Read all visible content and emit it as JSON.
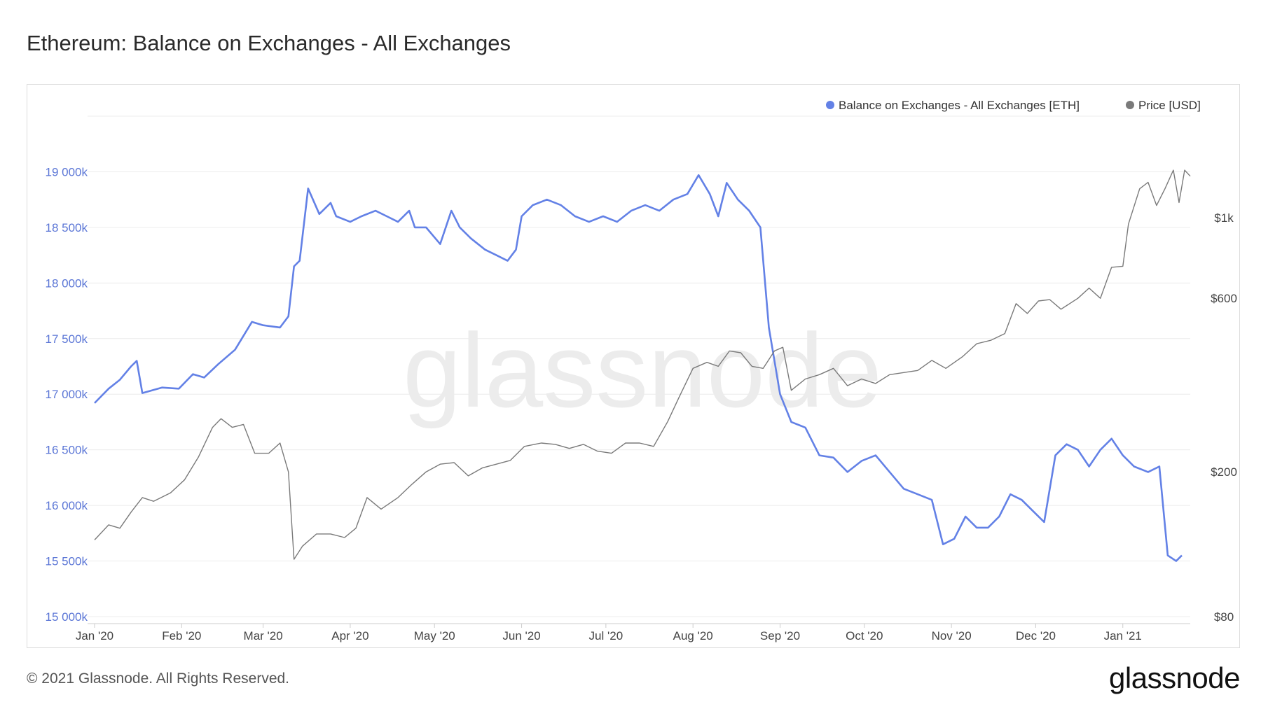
{
  "header": {
    "title": "Ethereum: Balance on Exchanges - All Exchanges"
  },
  "footer": {
    "copyright": "© 2021 Glassnode. All Rights Reserved.",
    "brand": "glassnode"
  },
  "watermark": "glassnode",
  "colors": {
    "balance": "#6381e6",
    "price": "#7a7a7a",
    "grid": "#ececec"
  },
  "chart_data": {
    "type": "line",
    "title": "Ethereum: Balance on Exchanges - All Exchanges",
    "x_tick_labels": [
      "Jan '20",
      "Feb '20",
      "Mar '20",
      "Apr '20",
      "May '20",
      "Jun '20",
      "Jul '20",
      "Aug '20",
      "Sep '20",
      "Oct '20",
      "Nov '20",
      "Dec '20",
      "Jan '21"
    ],
    "x_range": [
      "2020-01-01",
      "2021-01-25"
    ],
    "y_left": {
      "ticks": [
        15000,
        15500,
        16000,
        16500,
        17000,
        17500,
        18000,
        18500,
        19000
      ],
      "tick_labels": [
        "15 000k",
        "15 500k",
        "16 000k",
        "16 500k",
        "17 000k",
        "17 500k",
        "18 000k",
        "18 500k",
        "19 000k"
      ],
      "range": [
        15000,
        19500
      ],
      "unit": "k ETH"
    },
    "y_right": {
      "scale": "log",
      "ticks": [
        80,
        200,
        600,
        1000
      ],
      "tick_labels": [
        "$80",
        "$200",
        "$600",
        "$1k"
      ],
      "range": [
        80,
        1900
      ]
    },
    "grid": true,
    "legend_position": "top-right",
    "series": [
      {
        "name": "Balance on Exchanges - All Exchanges [ETH]",
        "axis": "left",
        "color": "#6381e6",
        "points": [
          [
            "2020-01-01",
            16920
          ],
          [
            "2020-01-06",
            17050
          ],
          [
            "2020-01-10",
            17130
          ],
          [
            "2020-01-14",
            17250
          ],
          [
            "2020-01-16",
            17300
          ],
          [
            "2020-01-18",
            17010
          ],
          [
            "2020-01-25",
            17060
          ],
          [
            "2020-01-31",
            17050
          ],
          [
            "2020-02-05",
            17180
          ],
          [
            "2020-02-09",
            17150
          ],
          [
            "2020-02-14",
            17270
          ],
          [
            "2020-02-20",
            17400
          ],
          [
            "2020-02-26",
            17650
          ],
          [
            "2020-03-01",
            17620
          ],
          [
            "2020-03-07",
            17600
          ],
          [
            "2020-03-10",
            17700
          ],
          [
            "2020-03-12",
            18150
          ],
          [
            "2020-03-14",
            18200
          ],
          [
            "2020-03-17",
            18850
          ],
          [
            "2020-03-21",
            18620
          ],
          [
            "2020-03-25",
            18720
          ],
          [
            "2020-03-27",
            18600
          ],
          [
            "2020-04-01",
            18550
          ],
          [
            "2020-04-05",
            18600
          ],
          [
            "2020-04-10",
            18650
          ],
          [
            "2020-04-14",
            18600
          ],
          [
            "2020-04-18",
            18550
          ],
          [
            "2020-04-22",
            18650
          ],
          [
            "2020-04-24",
            18500
          ],
          [
            "2020-04-28",
            18500
          ],
          [
            "2020-05-03",
            18350
          ],
          [
            "2020-05-07",
            18650
          ],
          [
            "2020-05-10",
            18500
          ],
          [
            "2020-05-14",
            18400
          ],
          [
            "2020-05-19",
            18300
          ],
          [
            "2020-05-23",
            18250
          ],
          [
            "2020-05-27",
            18200
          ],
          [
            "2020-05-30",
            18300
          ],
          [
            "2020-06-01",
            18600
          ],
          [
            "2020-06-05",
            18700
          ],
          [
            "2020-06-10",
            18750
          ],
          [
            "2020-06-15",
            18700
          ],
          [
            "2020-06-20",
            18600
          ],
          [
            "2020-06-25",
            18550
          ],
          [
            "2020-06-30",
            18600
          ],
          [
            "2020-07-05",
            18550
          ],
          [
            "2020-07-10",
            18650
          ],
          [
            "2020-07-15",
            18700
          ],
          [
            "2020-07-20",
            18650
          ],
          [
            "2020-07-25",
            18750
          ],
          [
            "2020-07-30",
            18800
          ],
          [
            "2020-08-03",
            18970
          ],
          [
            "2020-08-07",
            18800
          ],
          [
            "2020-08-10",
            18600
          ],
          [
            "2020-08-13",
            18900
          ],
          [
            "2020-08-17",
            18750
          ],
          [
            "2020-08-21",
            18650
          ],
          [
            "2020-08-25",
            18500
          ],
          [
            "2020-08-28",
            17600
          ],
          [
            "2020-09-01",
            17000
          ],
          [
            "2020-09-05",
            16750
          ],
          [
            "2020-09-10",
            16700
          ],
          [
            "2020-09-15",
            16450
          ],
          [
            "2020-09-20",
            16430
          ],
          [
            "2020-09-25",
            16300
          ],
          [
            "2020-09-30",
            16400
          ],
          [
            "2020-10-05",
            16450
          ],
          [
            "2020-10-10",
            16300
          ],
          [
            "2020-10-15",
            16150
          ],
          [
            "2020-10-20",
            16100
          ],
          [
            "2020-10-25",
            16050
          ],
          [
            "2020-10-29",
            15650
          ],
          [
            "2020-11-02",
            15700
          ],
          [
            "2020-11-06",
            15900
          ],
          [
            "2020-11-10",
            15800
          ],
          [
            "2020-11-14",
            15800
          ],
          [
            "2020-11-18",
            15900
          ],
          [
            "2020-11-22",
            16100
          ],
          [
            "2020-11-26",
            16050
          ],
          [
            "2020-11-30",
            15950
          ],
          [
            "2020-12-04",
            15850
          ],
          [
            "2020-12-08",
            16450
          ],
          [
            "2020-12-12",
            16550
          ],
          [
            "2020-12-16",
            16500
          ],
          [
            "2020-12-20",
            16350
          ],
          [
            "2020-12-24",
            16500
          ],
          [
            "2020-12-28",
            16600
          ],
          [
            "2021-01-01",
            16450
          ],
          [
            "2021-01-05",
            16350
          ],
          [
            "2021-01-10",
            16300
          ],
          [
            "2021-01-14",
            16350
          ],
          [
            "2021-01-17",
            15550
          ],
          [
            "2021-01-20",
            15500
          ],
          [
            "2021-01-22",
            15550
          ]
        ]
      },
      {
        "name": "Price [USD]",
        "axis": "right",
        "color": "#7a7a7a",
        "points": [
          [
            "2020-01-01",
            130
          ],
          [
            "2020-01-06",
            143
          ],
          [
            "2020-01-10",
            140
          ],
          [
            "2020-01-14",
            155
          ],
          [
            "2020-01-18",
            170
          ],
          [
            "2020-01-22",
            166
          ],
          [
            "2020-01-28",
            175
          ],
          [
            "2020-02-02",
            190
          ],
          [
            "2020-02-07",
            220
          ],
          [
            "2020-02-12",
            265
          ],
          [
            "2020-02-15",
            280
          ],
          [
            "2020-02-19",
            265
          ],
          [
            "2020-02-23",
            270
          ],
          [
            "2020-02-27",
            225
          ],
          [
            "2020-03-03",
            225
          ],
          [
            "2020-03-07",
            240
          ],
          [
            "2020-03-10",
            200
          ],
          [
            "2020-03-12",
            115
          ],
          [
            "2020-03-15",
            125
          ],
          [
            "2020-03-20",
            135
          ],
          [
            "2020-03-25",
            135
          ],
          [
            "2020-03-30",
            132
          ],
          [
            "2020-04-03",
            140
          ],
          [
            "2020-04-07",
            170
          ],
          [
            "2020-04-12",
            158
          ],
          [
            "2020-04-18",
            170
          ],
          [
            "2020-04-23",
            185
          ],
          [
            "2020-04-28",
            200
          ],
          [
            "2020-05-03",
            210
          ],
          [
            "2020-05-08",
            212
          ],
          [
            "2020-05-13",
            195
          ],
          [
            "2020-05-18",
            205
          ],
          [
            "2020-05-23",
            210
          ],
          [
            "2020-05-28",
            215
          ],
          [
            "2020-06-02",
            235
          ],
          [
            "2020-06-08",
            240
          ],
          [
            "2020-06-13",
            238
          ],
          [
            "2020-06-18",
            232
          ],
          [
            "2020-06-23",
            238
          ],
          [
            "2020-06-28",
            228
          ],
          [
            "2020-07-03",
            225
          ],
          [
            "2020-07-08",
            240
          ],
          [
            "2020-07-13",
            240
          ],
          [
            "2020-07-18",
            235
          ],
          [
            "2020-07-23",
            275
          ],
          [
            "2020-07-27",
            320
          ],
          [
            "2020-08-01",
            385
          ],
          [
            "2020-08-06",
            400
          ],
          [
            "2020-08-10",
            390
          ],
          [
            "2020-08-14",
            430
          ],
          [
            "2020-08-18",
            425
          ],
          [
            "2020-08-22",
            390
          ],
          [
            "2020-08-26",
            385
          ],
          [
            "2020-08-30",
            430
          ],
          [
            "2020-09-02",
            440
          ],
          [
            "2020-09-05",
            335
          ],
          [
            "2020-09-10",
            360
          ],
          [
            "2020-09-15",
            370
          ],
          [
            "2020-09-20",
            385
          ],
          [
            "2020-09-25",
            345
          ],
          [
            "2020-09-30",
            360
          ],
          [
            "2020-10-05",
            350
          ],
          [
            "2020-10-10",
            370
          ],
          [
            "2020-10-15",
            375
          ],
          [
            "2020-10-20",
            380
          ],
          [
            "2020-10-25",
            405
          ],
          [
            "2020-10-30",
            385
          ],
          [
            "2020-11-05",
            415
          ],
          [
            "2020-11-10",
            450
          ],
          [
            "2020-11-15",
            460
          ],
          [
            "2020-11-20",
            480
          ],
          [
            "2020-11-24",
            580
          ],
          [
            "2020-11-28",
            545
          ],
          [
            "2020-12-02",
            590
          ],
          [
            "2020-12-06",
            595
          ],
          [
            "2020-12-10",
            560
          ],
          [
            "2020-12-16",
            600
          ],
          [
            "2020-12-20",
            640
          ],
          [
            "2020-12-24",
            600
          ],
          [
            "2020-12-28",
            730
          ],
          [
            "2021-01-01",
            735
          ],
          [
            "2021-01-03",
            960
          ],
          [
            "2021-01-07",
            1200
          ],
          [
            "2021-01-10",
            1250
          ],
          [
            "2021-01-13",
            1080
          ],
          [
            "2021-01-16",
            1200
          ],
          [
            "2021-01-19",
            1350
          ],
          [
            "2021-01-21",
            1100
          ],
          [
            "2021-01-23",
            1350
          ],
          [
            "2021-01-25",
            1300
          ]
        ]
      }
    ]
  }
}
